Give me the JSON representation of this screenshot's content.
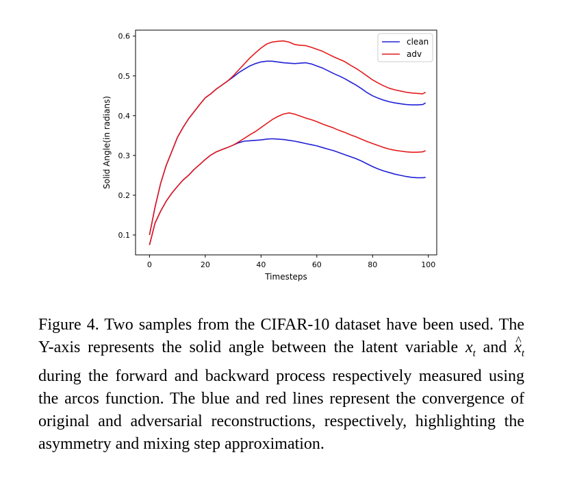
{
  "chart_data": {
    "type": "line",
    "xlabel": "Timesteps",
    "ylabel": "Solid Angle(in radians)",
    "xlim": [
      -5,
      103
    ],
    "ylim": [
      0.05,
      0.615
    ],
    "xticks": [
      0,
      20,
      40,
      60,
      80,
      100
    ],
    "xtick_labels": [
      "0",
      "20",
      "40",
      "60",
      "80",
      "100"
    ],
    "yticks": [
      0.1,
      0.2,
      0.3,
      0.4,
      0.5,
      0.6
    ],
    "ytick_labels": [
      "0.1",
      "0.2",
      "0.3",
      "0.4",
      "0.5",
      "0.6"
    ],
    "legend_position": "top-right",
    "grid": false,
    "x": [
      0,
      2,
      4,
      6,
      8,
      10,
      12,
      14,
      16,
      18,
      20,
      22,
      24,
      26,
      28,
      30,
      32,
      34,
      36,
      38,
      40,
      42,
      44,
      46,
      48,
      50,
      52,
      54,
      56,
      58,
      60,
      62,
      64,
      66,
      68,
      70,
      72,
      74,
      76,
      78,
      80,
      82,
      84,
      86,
      88,
      90,
      92,
      94,
      96,
      98,
      99
    ],
    "series": [
      {
        "name": "clean",
        "color": "#1f1fd6",
        "values": [
          0.1,
          0.17,
          0.23,
          0.275,
          0.31,
          0.345,
          0.37,
          0.392,
          0.41,
          0.428,
          0.445,
          0.455,
          0.467,
          0.477,
          0.487,
          0.497,
          0.508,
          0.517,
          0.525,
          0.531,
          0.535,
          0.537,
          0.537,
          0.535,
          0.533,
          0.532,
          0.531,
          0.532,
          0.533,
          0.53,
          0.525,
          0.52,
          0.513,
          0.506,
          0.5,
          0.493,
          0.485,
          0.477,
          0.468,
          0.458,
          0.45,
          0.444,
          0.439,
          0.435,
          0.432,
          0.43,
          0.428,
          0.427,
          0.427,
          0.428,
          0.432
        ]
      },
      {
        "name": "adv",
        "color": "#e31a1c",
        "values": [
          0.1,
          0.17,
          0.23,
          0.275,
          0.31,
          0.345,
          0.37,
          0.392,
          0.41,
          0.428,
          0.445,
          0.455,
          0.467,
          0.477,
          0.487,
          0.5,
          0.515,
          0.53,
          0.545,
          0.558,
          0.57,
          0.58,
          0.585,
          0.587,
          0.588,
          0.585,
          0.579,
          0.577,
          0.576,
          0.572,
          0.567,
          0.562,
          0.555,
          0.548,
          0.542,
          0.536,
          0.527,
          0.519,
          0.51,
          0.5,
          0.49,
          0.482,
          0.475,
          0.469,
          0.465,
          0.462,
          0.459,
          0.457,
          0.456,
          0.455,
          0.459
        ]
      },
      {
        "name": "clean",
        "color": "#1f1fd6",
        "values": [
          0.075,
          0.13,
          0.16,
          0.185,
          0.205,
          0.222,
          0.238,
          0.25,
          0.265,
          0.277,
          0.29,
          0.301,
          0.309,
          0.315,
          0.32,
          0.326,
          0.332,
          0.336,
          0.337,
          0.338,
          0.339,
          0.341,
          0.342,
          0.341,
          0.34,
          0.338,
          0.336,
          0.333,
          0.33,
          0.327,
          0.324,
          0.32,
          0.316,
          0.312,
          0.307,
          0.302,
          0.297,
          0.292,
          0.286,
          0.279,
          0.272,
          0.266,
          0.261,
          0.257,
          0.253,
          0.25,
          0.247,
          0.245,
          0.244,
          0.244,
          0.245
        ]
      },
      {
        "name": "adv",
        "color": "#e31a1c",
        "values": [
          0.075,
          0.13,
          0.16,
          0.185,
          0.205,
          0.222,
          0.238,
          0.25,
          0.265,
          0.277,
          0.29,
          0.301,
          0.309,
          0.315,
          0.32,
          0.326,
          0.334,
          0.343,
          0.352,
          0.36,
          0.37,
          0.38,
          0.39,
          0.398,
          0.404,
          0.407,
          0.404,
          0.399,
          0.394,
          0.39,
          0.385,
          0.379,
          0.374,
          0.369,
          0.363,
          0.358,
          0.352,
          0.347,
          0.341,
          0.335,
          0.33,
          0.325,
          0.32,
          0.316,
          0.313,
          0.311,
          0.309,
          0.308,
          0.308,
          0.309,
          0.312
        ]
      }
    ],
    "legend": [
      {
        "label": "clean",
        "color": "#1f1fd6"
      },
      {
        "label": "adv",
        "color": "#e31a1c"
      }
    ]
  },
  "caption": {
    "part1": "Figure 4. Two samples from the CIFAR-10 dataset have been used. The Y-axis represents the solid angle between the latent variable ",
    "math1_base": "x",
    "math1_sub": "t",
    "part2": " and ",
    "math2_base": "x",
    "math2_sub": "t",
    "part3": " during the forward and backward process respectively measured using the arcos function. The blue and red lines represent the convergence of original and adversarial reconstructions, respectively, highlighting the asymmetry and mixing step approximation."
  }
}
